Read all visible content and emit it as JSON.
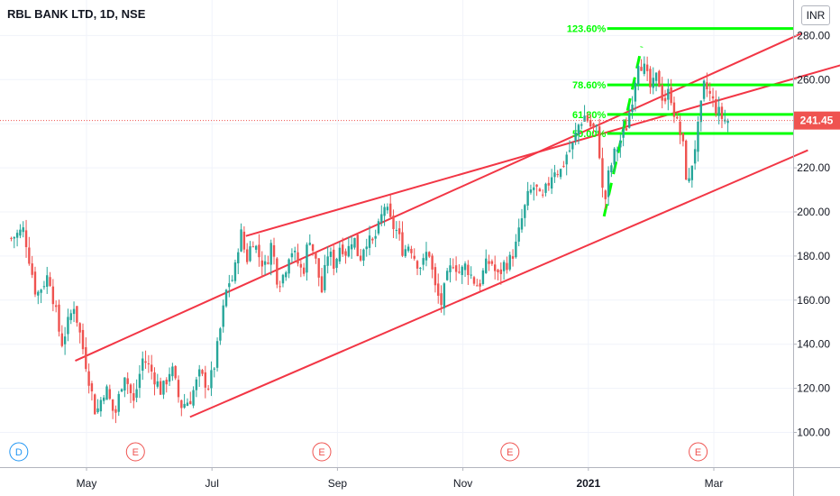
{
  "header": {
    "title": "RBL BANK LTD, 1D, NSE",
    "currency": "INR"
  },
  "chart_data": {
    "type": "candlestick",
    "title": "RBL BANK LTD, 1D, NSE",
    "ylim": [
      92,
      290
    ],
    "y_ticks": [
      100,
      120,
      140,
      160,
      180,
      200,
      220,
      240,
      260,
      280
    ],
    "y_tick_labels": [
      "100.00",
      "120.00",
      "140.00",
      "160.00",
      "180.00",
      "200.00",
      "220.00",
      "240.00",
      "260.00",
      "280.00"
    ],
    "x_ticks": [
      {
        "label": "May",
        "month": 4
      },
      {
        "label": "Jul",
        "month": 6
      },
      {
        "label": "Sep",
        "month": 8
      },
      {
        "label": "Nov",
        "month": 10
      },
      {
        "label": "2021",
        "month": 12
      },
      {
        "label": "Mar",
        "month": 14
      }
    ],
    "last_price": 241.45,
    "last_price_label": "241.45",
    "up_color": "#26a69a",
    "down_color": "#ef5350",
    "price_series": [
      [
        2.8,
        188
      ],
      [
        3.0,
        192
      ],
      [
        3.2,
        162
      ],
      [
        3.4,
        172
      ],
      [
        3.6,
        140
      ],
      [
        3.8,
        158
      ],
      [
        4.0,
        130
      ],
      [
        4.15,
        108
      ],
      [
        4.3,
        121
      ],
      [
        4.45,
        107
      ],
      [
        4.6,
        128
      ],
      [
        4.75,
        113
      ],
      [
        4.9,
        134
      ],
      [
        5.05,
        127
      ],
      [
        5.2,
        118
      ],
      [
        5.35,
        130
      ],
      [
        5.5,
        112
      ],
      [
        5.65,
        115
      ],
      [
        5.8,
        126
      ],
      [
        5.95,
        121
      ],
      [
        6.05,
        132
      ],
      [
        6.15,
        150
      ],
      [
        6.25,
        168
      ],
      [
        6.35,
        170
      ],
      [
        6.45,
        192
      ],
      [
        6.55,
        178
      ],
      [
        6.65,
        188
      ],
      [
        6.75,
        180
      ],
      [
        6.85,
        175
      ],
      [
        6.95,
        186
      ],
      [
        7.05,
        168
      ],
      [
        7.15,
        172
      ],
      [
        7.25,
        184
      ],
      [
        7.35,
        178
      ],
      [
        7.45,
        172
      ],
      [
        7.55,
        190
      ],
      [
        7.65,
        178
      ],
      [
        7.75,
        164
      ],
      [
        7.85,
        182
      ],
      [
        7.95,
        176
      ],
      [
        8.05,
        186
      ],
      [
        8.15,
        181
      ],
      [
        8.25,
        190
      ],
      [
        8.35,
        178
      ],
      [
        8.45,
        188
      ],
      [
        8.55,
        185
      ],
      [
        8.65,
        192
      ],
      [
        8.75,
        203
      ],
      [
        8.85,
        195
      ],
      [
        8.95,
        191
      ],
      [
        9.05,
        182
      ],
      [
        9.15,
        186
      ],
      [
        9.25,
        178
      ],
      [
        9.35,
        175
      ],
      [
        9.45,
        184
      ],
      [
        9.55,
        166
      ],
      [
        9.65,
        158
      ],
      [
        9.75,
        170
      ],
      [
        9.85,
        178
      ],
      [
        9.95,
        172
      ],
      [
        10.05,
        176
      ],
      [
        10.15,
        170
      ],
      [
        10.25,
        166
      ],
      [
        10.35,
        175
      ],
      [
        10.45,
        178
      ],
      [
        10.55,
        170
      ],
      [
        10.65,
        176
      ],
      [
        10.75,
        178
      ],
      [
        10.85,
        185
      ],
      [
        10.95,
        198
      ],
      [
        11.05,
        208
      ],
      [
        11.15,
        212
      ],
      [
        11.25,
        204
      ],
      [
        11.35,
        212
      ],
      [
        11.45,
        220
      ],
      [
        11.55,
        218
      ],
      [
        11.65,
        226
      ],
      [
        11.75,
        230
      ],
      [
        11.85,
        240
      ],
      [
        11.95,
        244
      ],
      [
        12.05,
        238
      ],
      [
        12.15,
        237
      ],
      [
        12.25,
        200
      ],
      [
        12.3,
        214
      ],
      [
        12.4,
        225
      ],
      [
        12.5,
        232
      ],
      [
        12.6,
        238
      ],
      [
        12.7,
        252
      ],
      [
        12.8,
        270
      ],
      [
        12.9,
        264
      ],
      [
        13.0,
        255
      ],
      [
        13.1,
        262
      ],
      [
        13.2,
        250
      ],
      [
        13.3,
        255
      ],
      [
        13.4,
        241
      ],
      [
        13.5,
        232
      ],
      [
        13.55,
        218
      ],
      [
        13.6,
        212
      ],
      [
        13.65,
        222
      ],
      [
        13.75,
        238
      ],
      [
        13.85,
        258
      ],
      [
        13.95,
        252
      ],
      [
        14.05,
        246
      ],
      [
        14.15,
        242
      ],
      [
        14.25,
        241.45
      ]
    ],
    "channels": [
      {
        "name": "",
        "points": [
          [
            3.82,
            132.5
          ],
          [
            15.4,
            281
          ]
        ]
      },
      {
        "name": "",
        "points": [
          [
            6.54,
            189.1
          ],
          [
            16.2,
            268
          ]
        ]
      },
      {
        "name": "",
        "points": [
          [
            5.65,
            107
          ],
          [
            15.5,
            228
          ]
        ]
      }
    ],
    "fibonacci": [
      {
        "level": "123.60%",
        "price": 283.2
      },
      {
        "level": "78.60%",
        "price": 257.6
      },
      {
        "level": "61.80%",
        "price": 244.2
      },
      {
        "level": "50.00%",
        "price": 235.6
      }
    ],
    "earnings_markers": [
      {
        "label": "D",
        "month": 2.92,
        "color": "#2196f3"
      },
      {
        "label": "E",
        "month": 4.78,
        "color": "#ef5350"
      },
      {
        "label": "E",
        "month": 7.75,
        "color": "#ef5350"
      },
      {
        "label": "E",
        "month": 10.75,
        "color": "#ef5350"
      },
      {
        "label": "E",
        "month": 13.75,
        "color": "#ef5350"
      },
      {
        "label": "E",
        "month": 16.8,
        "color": "#ef5350"
      }
    ]
  }
}
